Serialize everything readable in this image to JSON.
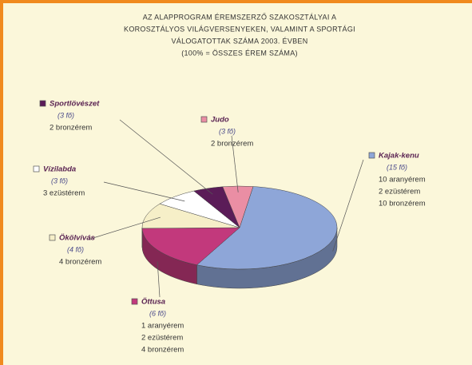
{
  "chart_data": {
    "type": "pie3d",
    "title_lines": [
      "AZ ALAPPROGRAM ÉREMSZERZŐ SZAKOSZTÁLYAI A",
      "KOROSZTÁLYOS VILÁGVERSENYEKEN, VALAMINT A SPORTÁGI",
      "VÁLOGATOTTAK SZÁMA 2003. ÉVBEN",
      "(100% = ÖSSZES ÉREM SZÁMA)"
    ],
    "categories": [
      "Kajak-kenu",
      "Öttusa",
      "Ökölvívás",
      "Vízilabda",
      "Sportlövészet",
      "Judo"
    ],
    "people": [
      "(15 fő)",
      "(6 fő)",
      "(4 fő)",
      "(3 fő)",
      "(3 fő)",
      "(3 fő)"
    ],
    "details": [
      [
        "10 aranyérem",
        "2 ezüstérem",
        "10 bronzérem"
      ],
      [
        "1 aranyérem",
        "2 ezüstérem",
        "4 bronzérem"
      ],
      [
        "4 bronzérem"
      ],
      [
        "3 ezüstérem"
      ],
      [
        "2 bronzérem"
      ],
      [
        "2 bronzérem"
      ]
    ],
    "values": [
      55,
      17.5,
      10,
      7.5,
      5,
      5
    ],
    "colors": [
      "#8ea6d8",
      "#c2397c",
      "#f6efc8",
      "#ffffff",
      "#5b1c58",
      "#ea8ea4"
    ]
  }
}
